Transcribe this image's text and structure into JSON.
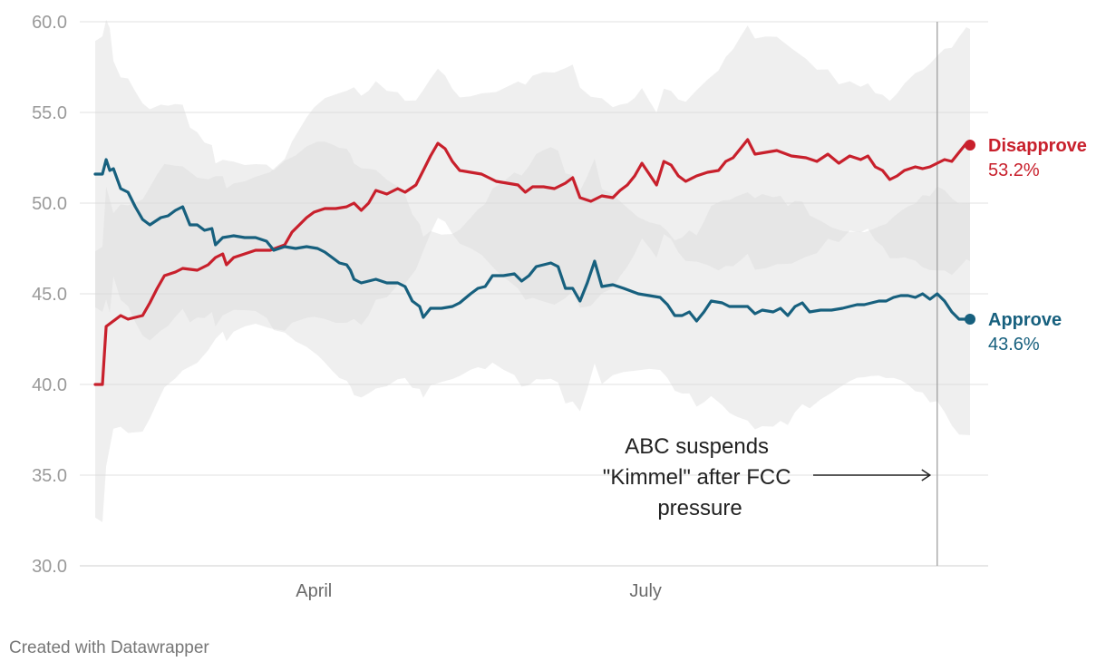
{
  "chart_data": {
    "type": "line",
    "y_axis": {
      "range": [
        30,
        60
      ],
      "ticks": [
        "30.0",
        "35.0",
        "40.0",
        "45.0",
        "50.0",
        "55.0",
        "60.0"
      ],
      "grid": true
    },
    "x_axis": {
      "tick_labels": [
        {
          "label": "April",
          "day": 61
        },
        {
          "label": "July",
          "day": 152
        }
      ]
    },
    "series": [
      {
        "name": "Disapprove",
        "end_value": "53.2%",
        "color": "#c8202c",
        "points": [
          [
            1,
            40.0
          ],
          [
            3,
            40.0
          ],
          [
            4,
            43.2
          ],
          [
            6,
            43.5
          ],
          [
            8,
            43.8
          ],
          [
            10,
            43.6
          ],
          [
            14,
            43.8
          ],
          [
            16,
            44.5
          ],
          [
            18,
            45.3
          ],
          [
            20,
            46.0
          ],
          [
            23,
            46.2
          ],
          [
            25,
            46.4
          ],
          [
            29,
            46.3
          ],
          [
            32,
            46.6
          ],
          [
            34,
            47.0
          ],
          [
            36,
            47.2
          ],
          [
            37,
            46.6
          ],
          [
            39,
            47.0
          ],
          [
            42,
            47.2
          ],
          [
            45,
            47.4
          ],
          [
            49,
            47.4
          ],
          [
            53,
            47.7
          ],
          [
            55,
            48.4
          ],
          [
            57,
            48.8
          ],
          [
            59,
            49.2
          ],
          [
            61,
            49.5
          ],
          [
            64,
            49.7
          ],
          [
            67,
            49.7
          ],
          [
            70,
            49.8
          ],
          [
            72,
            50.0
          ],
          [
            74,
            49.6
          ],
          [
            76,
            50.0
          ],
          [
            78,
            50.7
          ],
          [
            81,
            50.5
          ],
          [
            84,
            50.8
          ],
          [
            86,
            50.6
          ],
          [
            89,
            51.0
          ],
          [
            91,
            51.8
          ],
          [
            93,
            52.6
          ],
          [
            95,
            53.3
          ],
          [
            97,
            53.0
          ],
          [
            99,
            52.3
          ],
          [
            101,
            51.8
          ],
          [
            104,
            51.7
          ],
          [
            107,
            51.6
          ],
          [
            111,
            51.2
          ],
          [
            114,
            51.1
          ],
          [
            117,
            51.0
          ],
          [
            119,
            50.6
          ],
          [
            121,
            50.9
          ],
          [
            124,
            50.9
          ],
          [
            127,
            50.8
          ],
          [
            130,
            51.1
          ],
          [
            132,
            51.4
          ],
          [
            134,
            50.3
          ],
          [
            137,
            50.1
          ],
          [
            140,
            50.4
          ],
          [
            143,
            50.3
          ],
          [
            145,
            50.7
          ],
          [
            147,
            51.0
          ],
          [
            149,
            51.5
          ],
          [
            151,
            52.2
          ],
          [
            153,
            51.6
          ],
          [
            155,
            51.0
          ],
          [
            157,
            52.3
          ],
          [
            159,
            52.1
          ],
          [
            161,
            51.5
          ],
          [
            163,
            51.2
          ],
          [
            166,
            51.5
          ],
          [
            169,
            51.7
          ],
          [
            172,
            51.8
          ],
          [
            174,
            52.3
          ],
          [
            176,
            52.5
          ],
          [
            178,
            53.0
          ],
          [
            180,
            53.5
          ],
          [
            182,
            52.7
          ],
          [
            185,
            52.8
          ],
          [
            188,
            52.9
          ],
          [
            192,
            52.6
          ],
          [
            196,
            52.5
          ],
          [
            199,
            52.3
          ],
          [
            202,
            52.7
          ],
          [
            205,
            52.2
          ],
          [
            208,
            52.6
          ],
          [
            211,
            52.4
          ],
          [
            213,
            52.6
          ],
          [
            215,
            52.0
          ],
          [
            217,
            51.8
          ],
          [
            219,
            51.3
          ],
          [
            221,
            51.5
          ],
          [
            223,
            51.8
          ],
          [
            226,
            52.0
          ],
          [
            228,
            51.9
          ],
          [
            230,
            52.0
          ],
          [
            232,
            52.2
          ],
          [
            234,
            52.4
          ],
          [
            236,
            52.3
          ],
          [
            238,
            52.8
          ],
          [
            240,
            53.3
          ],
          [
            241,
            53.2
          ]
        ]
      },
      {
        "name": "Approve",
        "end_value": "43.6%",
        "color": "#17607e",
        "points": [
          [
            1,
            51.6
          ],
          [
            3,
            51.6
          ],
          [
            4,
            52.4
          ],
          [
            5,
            51.8
          ],
          [
            6,
            51.9
          ],
          [
            8,
            50.8
          ],
          [
            10,
            50.6
          ],
          [
            12,
            49.8
          ],
          [
            14,
            49.1
          ],
          [
            16,
            48.8
          ],
          [
            19,
            49.2
          ],
          [
            21,
            49.3
          ],
          [
            23,
            49.6
          ],
          [
            25,
            49.8
          ],
          [
            27,
            48.8
          ],
          [
            29,
            48.8
          ],
          [
            31,
            48.5
          ],
          [
            33,
            48.6
          ],
          [
            34,
            47.7
          ],
          [
            36,
            48.1
          ],
          [
            39,
            48.2
          ],
          [
            42,
            48.1
          ],
          [
            45,
            48.1
          ],
          [
            48,
            47.9
          ],
          [
            50,
            47.4
          ],
          [
            53,
            47.6
          ],
          [
            56,
            47.5
          ],
          [
            59,
            47.6
          ],
          [
            62,
            47.5
          ],
          [
            64,
            47.3
          ],
          [
            66,
            47.0
          ],
          [
            68,
            46.7
          ],
          [
            70,
            46.6
          ],
          [
            71,
            46.3
          ],
          [
            72,
            45.8
          ],
          [
            74,
            45.6
          ],
          [
            76,
            45.7
          ],
          [
            78,
            45.8
          ],
          [
            81,
            45.6
          ],
          [
            84,
            45.6
          ],
          [
            86,
            45.4
          ],
          [
            88,
            44.6
          ],
          [
            90,
            44.3
          ],
          [
            91,
            43.7
          ],
          [
            93,
            44.2
          ],
          [
            96,
            44.2
          ],
          [
            99,
            44.3
          ],
          [
            101,
            44.5
          ],
          [
            104,
            45.0
          ],
          [
            106,
            45.3
          ],
          [
            108,
            45.4
          ],
          [
            110,
            46.0
          ],
          [
            113,
            46.0
          ],
          [
            116,
            46.1
          ],
          [
            118,
            45.7
          ],
          [
            120,
            46.0
          ],
          [
            122,
            46.5
          ],
          [
            124,
            46.6
          ],
          [
            126,
            46.7
          ],
          [
            128,
            46.5
          ],
          [
            130,
            45.3
          ],
          [
            132,
            45.3
          ],
          [
            134,
            44.6
          ],
          [
            136,
            45.6
          ],
          [
            138,
            46.8
          ],
          [
            140,
            45.4
          ],
          [
            143,
            45.5
          ],
          [
            146,
            45.3
          ],
          [
            150,
            45.0
          ],
          [
            153,
            44.9
          ],
          [
            156,
            44.8
          ],
          [
            158,
            44.4
          ],
          [
            160,
            43.8
          ],
          [
            162,
            43.8
          ],
          [
            164,
            44.0
          ],
          [
            166,
            43.5
          ],
          [
            168,
            44.0
          ],
          [
            170,
            44.6
          ],
          [
            173,
            44.5
          ],
          [
            175,
            44.3
          ],
          [
            177,
            44.3
          ],
          [
            180,
            44.3
          ],
          [
            182,
            43.9
          ],
          [
            184,
            44.1
          ],
          [
            187,
            44.0
          ],
          [
            189,
            44.2
          ],
          [
            191,
            43.8
          ],
          [
            193,
            44.3
          ],
          [
            195,
            44.5
          ],
          [
            197,
            44.0
          ],
          [
            200,
            44.1
          ],
          [
            203,
            44.1
          ],
          [
            206,
            44.2
          ],
          [
            208,
            44.3
          ],
          [
            210,
            44.4
          ],
          [
            212,
            44.4
          ],
          [
            214,
            44.5
          ],
          [
            216,
            44.6
          ],
          [
            218,
            44.6
          ],
          [
            220,
            44.8
          ],
          [
            222,
            44.9
          ],
          [
            224,
            44.9
          ],
          [
            226,
            44.8
          ],
          [
            228,
            45.0
          ],
          [
            230,
            44.7
          ],
          [
            232,
            45.0
          ],
          [
            234,
            44.6
          ],
          [
            236,
            44.0
          ],
          [
            238,
            43.6
          ],
          [
            241,
            43.6
          ]
        ]
      }
    ],
    "annotation": {
      "lines": [
        "ABC suspends",
        "\"Kimmel\" after FCC",
        "pressure"
      ],
      "day": 232
    }
  },
  "credit": "Created with Datawrapper"
}
